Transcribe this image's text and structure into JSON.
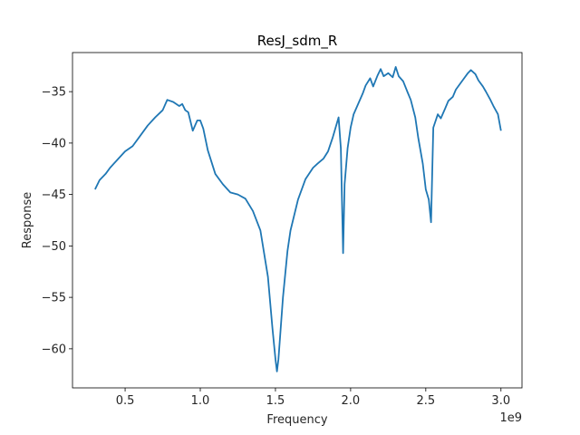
{
  "chart_data": {
    "type": "line",
    "title": "ResJ_sdm_R",
    "xlabel": "Frequency",
    "ylabel": "Response",
    "x_offset_label": "1e9",
    "xlim": [
      0.15,
      3.14
    ],
    "ylim": [
      -63.8,
      -31.2
    ],
    "x_ticks": [
      {
        "value": 0.5,
        "label": "0.5"
      },
      {
        "value": 1.0,
        "label": "1.0"
      },
      {
        "value": 1.5,
        "label": "1.5"
      },
      {
        "value": 2.0,
        "label": "2.0"
      },
      {
        "value": 2.5,
        "label": "2.5"
      },
      {
        "value": 3.0,
        "label": "3.0"
      }
    ],
    "y_ticks": [
      {
        "value": -35,
        "label": "−35"
      },
      {
        "value": -40,
        "label": "−40"
      },
      {
        "value": -45,
        "label": "−45"
      },
      {
        "value": -50,
        "label": "−50"
      },
      {
        "value": -55,
        "label": "−55"
      },
      {
        "value": -60,
        "label": "−60"
      }
    ],
    "grid": false,
    "color": "#1f77b4",
    "x": [
      0.3,
      0.33,
      0.37,
      0.4,
      0.45,
      0.5,
      0.55,
      0.6,
      0.65,
      0.7,
      0.75,
      0.78,
      0.82,
      0.86,
      0.88,
      0.9,
      0.92,
      0.95,
      0.98,
      1.0,
      1.02,
      1.05,
      1.1,
      1.15,
      1.2,
      1.25,
      1.3,
      1.35,
      1.4,
      1.45,
      1.48,
      1.5,
      1.51,
      1.52,
      1.53,
      1.55,
      1.58,
      1.6,
      1.65,
      1.7,
      1.75,
      1.78,
      1.82,
      1.85,
      1.88,
      1.9,
      1.92,
      1.935,
      1.95,
      1.96,
      1.98,
      2.0,
      2.02,
      2.05,
      2.08,
      2.1,
      2.13,
      2.15,
      2.18,
      2.2,
      2.22,
      2.25,
      2.28,
      2.3,
      2.32,
      2.35,
      2.38,
      2.4,
      2.43,
      2.45,
      2.48,
      2.5,
      2.52,
      2.535,
      2.55,
      2.58,
      2.6,
      2.63,
      2.65,
      2.68,
      2.7,
      2.75,
      2.78,
      2.8,
      2.83,
      2.85,
      2.88,
      2.9,
      2.93,
      2.95,
      2.98,
      3.0
    ],
    "y": [
      -44.5,
      -43.6,
      -43.0,
      -42.4,
      -41.6,
      -40.8,
      -40.3,
      -39.3,
      -38.3,
      -37.5,
      -36.8,
      -35.8,
      -36.0,
      -36.4,
      -36.2,
      -36.8,
      -37.0,
      -38.8,
      -37.8,
      -37.8,
      -38.6,
      -40.7,
      -43.0,
      -44.0,
      -44.8,
      -45.0,
      -45.4,
      -46.6,
      -48.5,
      -53.0,
      -58.0,
      -61.0,
      -62.2,
      -61.0,
      -59.0,
      -55.0,
      -50.5,
      -48.5,
      -45.5,
      -43.5,
      -42.4,
      -42.0,
      -41.5,
      -40.8,
      -39.5,
      -38.5,
      -37.5,
      -40.5,
      -50.7,
      -44.0,
      -40.5,
      -38.5,
      -37.2,
      -36.2,
      -35.2,
      -34.4,
      -33.7,
      -34.5,
      -33.4,
      -32.8,
      -33.5,
      -33.2,
      -33.6,
      -32.6,
      -33.5,
      -34.0,
      -35.1,
      -35.8,
      -37.5,
      -39.5,
      -42.0,
      -44.5,
      -45.5,
      -47.7,
      -38.5,
      -37.2,
      -37.6,
      -36.6,
      -35.9,
      -35.5,
      -34.8,
      -33.8,
      -33.2,
      -32.9,
      -33.3,
      -33.9,
      -34.5,
      -35.0,
      -35.8,
      -36.4,
      -37.2,
      -38.8
    ]
  }
}
